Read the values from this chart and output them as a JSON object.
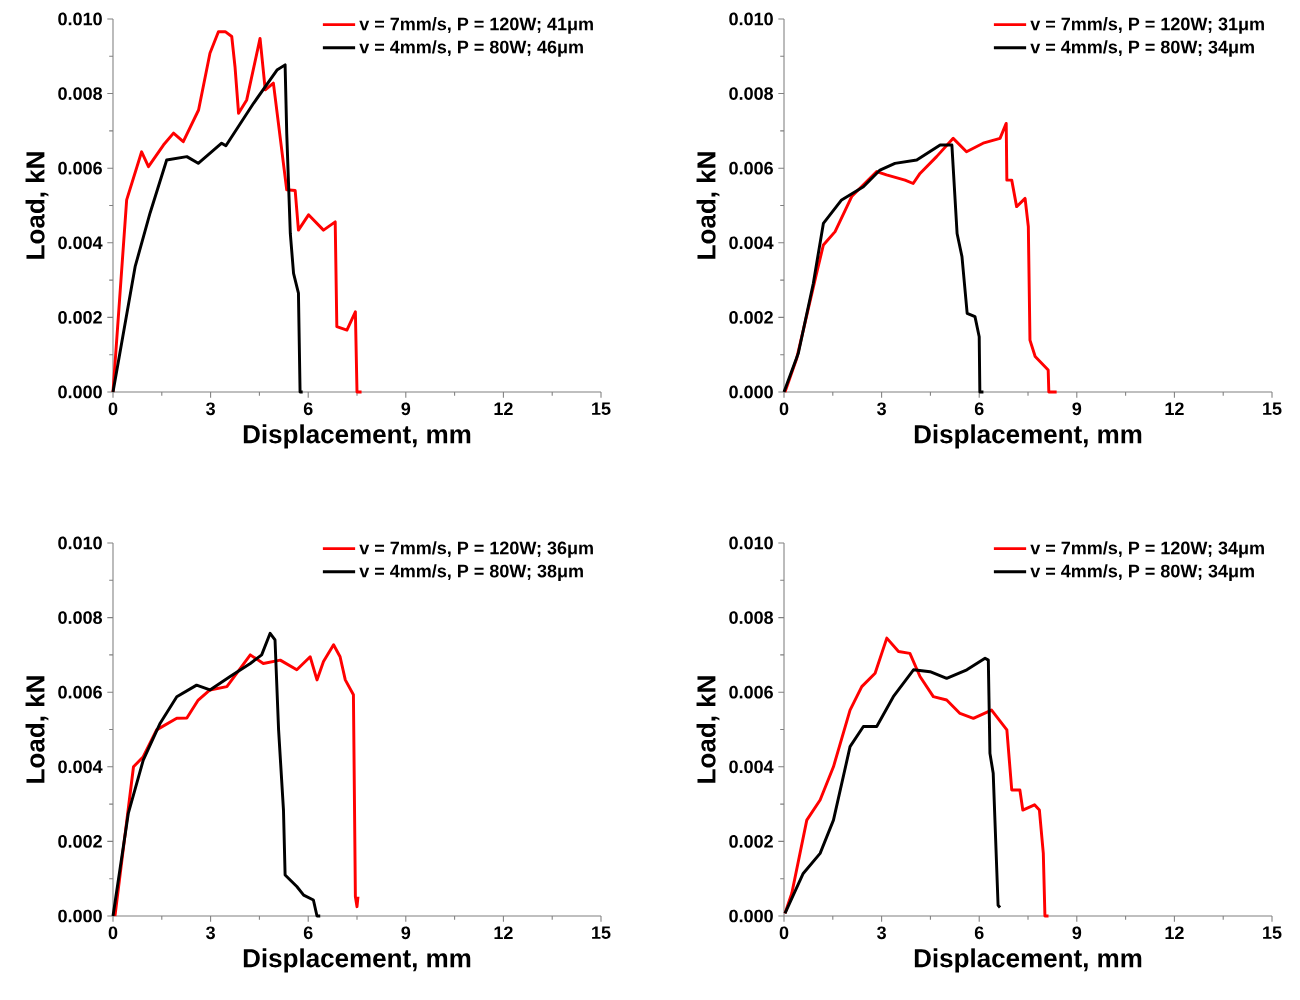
{
  "chart_data": [
    {
      "type": "line",
      "xlabel": "Displacement, mm",
      "ylabel": "Load, kN",
      "xlim": [
        0,
        15
      ],
      "ylim": [
        0,
        0.01
      ],
      "xticks": [
        0,
        3,
        6,
        9,
        12,
        15
      ],
      "yticks": [
        {
          "value": 0,
          "label": "0.000"
        },
        {
          "value": 0.002,
          "label": "0.002"
        },
        {
          "value": 0.004,
          "label": "0.004"
        },
        {
          "value": 0.006,
          "label": "0.006"
        },
        {
          "value": 0.008,
          "label": "0.008"
        },
        {
          "value": 0.01,
          "label": "0.010"
        }
      ],
      "legend": "top right",
      "series": [
        {
          "name": "v = 7mm/s, P = 120W; 41μm",
          "color": "#ff0000",
          "x": [
            0.0,
            0.42,
            0.88,
            1.09,
            1.55,
            1.86,
            2.16,
            2.63,
            2.98,
            3.24,
            3.45,
            3.65,
            3.75,
            3.86,
            4.11,
            4.52,
            4.68,
            4.93,
            5.34,
            5.6,
            5.7,
            6.01,
            6.47,
            6.83,
            6.88,
            7.19,
            7.45,
            7.5,
            7.64
          ],
          "values": [
            0.0,
            0.00515,
            0.00644,
            0.00604,
            0.00662,
            0.00694,
            0.00671,
            0.00756,
            0.00908,
            0.00966,
            0.00966,
            0.00953,
            0.00872,
            0.00747,
            0.00783,
            0.00948,
            0.0081,
            0.00828,
            0.00542,
            0.0054,
            0.00434,
            0.00475,
            0.00434,
            0.00456,
            0.00175,
            0.00166,
            0.00215,
            0.0,
            0.0
          ]
        },
        {
          "name": "v = 4mm/s, P = 80W; 46μm",
          "color": "#000000",
          "x": [
            0.0,
            0.68,
            1.14,
            1.65,
            2.27,
            2.62,
            3.34,
            3.47,
            4.32,
            5.04,
            5.29,
            5.34,
            5.45,
            5.55,
            5.7,
            5.75,
            5.83
          ],
          "values": [
            0.0,
            0.00336,
            0.0048,
            0.00622,
            0.00631,
            0.00613,
            0.00667,
            0.0066,
            0.00774,
            0.00863,
            0.00877,
            0.00694,
            0.00425,
            0.00318,
            0.00265,
            0.0,
            0.0
          ]
        }
      ]
    },
    {
      "type": "line",
      "xlabel": "Displacement, mm",
      "ylabel": "Load, kN",
      "xlim": [
        0,
        15
      ],
      "ylim": [
        0,
        0.01
      ],
      "xticks": [
        0,
        3,
        6,
        9,
        12,
        15
      ],
      "yticks": [
        {
          "value": 0,
          "label": "0.000"
        },
        {
          "value": 0.002,
          "label": "0.002"
        },
        {
          "value": 0.004,
          "label": "0.004"
        },
        {
          "value": 0.006,
          "label": "0.006"
        },
        {
          "value": 0.008,
          "label": "0.008"
        },
        {
          "value": 0.01,
          "label": "0.010"
        }
      ],
      "legend": "top right",
      "series": [
        {
          "name": "v = 7mm/s, P = 120W; 31μm",
          "color": "#ff0000",
          "x": [
            0.03,
            0.39,
            1.0,
            1.21,
            1.57,
            2.08,
            2.85,
            3.15,
            3.72,
            3.97,
            4.18,
            4.69,
            5.2,
            5.61,
            6.12,
            6.64,
            6.83,
            6.85,
            7.0,
            7.15,
            7.41,
            7.51,
            7.56,
            7.72,
            8.12,
            8.14,
            8.38
          ],
          "values": [
            0.0,
            0.0009,
            0.00318,
            0.00394,
            0.0043,
            0.00524,
            0.00591,
            0.00582,
            0.00568,
            0.00559,
            0.00586,
            0.00631,
            0.0068,
            0.00644,
            0.00667,
            0.0068,
            0.0072,
            0.00568,
            0.00568,
            0.00497,
            0.00519,
            0.00443,
            0.00139,
            0.00095,
            0.00059,
            0.0,
            0.0
          ]
        },
        {
          "name": "v = 4mm/s, P = 80W; 34μm",
          "color": "#000000",
          "x": [
            0.0,
            0.44,
            0.9,
            1.21,
            1.77,
            2.44,
            2.95,
            3.41,
            4.08,
            4.8,
            5.16,
            5.32,
            5.47,
            5.63,
            5.87,
            6.0,
            6.02,
            6.13
          ],
          "values": [
            0.0,
            0.00104,
            0.00291,
            0.00452,
            0.00515,
            0.0055,
            0.00595,
            0.00613,
            0.00622,
            0.00662,
            0.00662,
            0.00425,
            0.00363,
            0.00211,
            0.00202,
            0.00148,
            0.0,
            0.0
          ]
        }
      ]
    },
    {
      "type": "line",
      "xlabel": "Displacement, mm",
      "ylabel": "Load, kN",
      "xlim": [
        0,
        15
      ],
      "ylim": [
        0,
        0.01
      ],
      "xticks": [
        0,
        3,
        6,
        9,
        12,
        15
      ],
      "yticks": [
        {
          "value": 0,
          "label": "0.000"
        },
        {
          "value": 0.002,
          "label": "0.002"
        },
        {
          "value": 0.004,
          "label": "0.004"
        },
        {
          "value": 0.006,
          "label": "0.006"
        },
        {
          "value": 0.008,
          "label": "0.008"
        },
        {
          "value": 0.01,
          "label": "0.010"
        }
      ],
      "legend": "top right",
      "series": [
        {
          "name": "v = 7mm/s, P = 120W; 36μm",
          "color": "#ff0000",
          "x": [
            0.06,
            0.63,
            0.93,
            1.34,
            1.96,
            2.27,
            2.62,
            2.98,
            3.5,
            4.22,
            4.62,
            5.14,
            5.65,
            6.06,
            6.27,
            6.47,
            6.78,
            6.98,
            7.14,
            7.39,
            7.45,
            7.5,
            7.53
          ],
          "values": [
            0.0,
            0.004,
            0.00427,
            0.00499,
            0.0053,
            0.00531,
            0.00579,
            0.00606,
            0.00615,
            0.007,
            0.00677,
            0.00686,
            0.0066,
            0.00695,
            0.00633,
            0.00682,
            0.00727,
            0.00695,
            0.00633,
            0.00593,
            0.00052,
            0.00025,
            0.00052
          ]
        },
        {
          "name": "v = 4mm/s, P = 80W; 38μm",
          "color": "#000000",
          "x": [
            0.0,
            0.47,
            0.93,
            1.45,
            1.96,
            2.57,
            2.98,
            3.6,
            4.22,
            4.57,
            4.83,
            4.98,
            5.09,
            5.24,
            5.29,
            5.65,
            5.86,
            6.16,
            6.27,
            6.37
          ],
          "values": [
            0.0,
            0.00275,
            0.00418,
            0.00517,
            0.00588,
            0.00619,
            0.00606,
            0.00642,
            0.00677,
            0.007,
            0.00758,
            0.0074,
            0.00499,
            0.00284,
            0.0011,
            0.00079,
            0.00056,
            0.00043,
            0.0,
            0.0
          ]
        }
      ]
    },
    {
      "type": "line",
      "xlabel": "Displacement, mm",
      "ylabel": "Load, kN",
      "xlim": [
        0,
        15
      ],
      "ylim": [
        0,
        0.01
      ],
      "xticks": [
        0,
        3,
        6,
        9,
        12,
        15
      ],
      "yticks": [
        {
          "value": 0,
          "label": "0.000"
        },
        {
          "value": 0.002,
          "label": "0.002"
        },
        {
          "value": 0.004,
          "label": "0.004"
        },
        {
          "value": 0.006,
          "label": "0.006"
        },
        {
          "value": 0.008,
          "label": "0.008"
        },
        {
          "value": 0.01,
          "label": "0.010"
        }
      ],
      "legend": "top right",
      "series": [
        {
          "name": "v = 7mm/s, P = 120W; 34μm",
          "color": "#ff0000",
          "x": [
            0.03,
            0.24,
            0.7,
            1.11,
            1.52,
            2.03,
            2.39,
            2.8,
            3.16,
            3.52,
            3.87,
            4.18,
            4.59,
            5.0,
            5.41,
            5.82,
            6.38,
            6.85,
            7.0,
            7.25,
            7.34,
            7.7,
            7.85,
            7.97,
            8.02,
            8.13
          ],
          "values": [
            7e-05,
            0.00061,
            0.00257,
            0.00311,
            0.004,
            0.00552,
            0.00615,
            0.00651,
            0.00745,
            0.00709,
            0.00704,
            0.00642,
            0.00588,
            0.00579,
            0.00543,
            0.0053,
            0.00552,
            0.00499,
            0.00338,
            0.00338,
            0.00284,
            0.00298,
            0.00284,
            0.00168,
            0.0,
            0.0
          ]
        },
        {
          "name": "v = 4mm/s, P = 80W; 34μm",
          "color": "#000000",
          "x": [
            0.03,
            0.59,
            1.11,
            1.52,
            2.03,
            2.44,
            2.85,
            3.36,
            3.98,
            4.49,
            5.0,
            5.62,
            6.18,
            6.28,
            6.33,
            6.43,
            6.58,
            6.64
          ],
          "values": [
            7e-05,
            0.00114,
            0.00168,
            0.00257,
            0.00454,
            0.00508,
            0.00508,
            0.00588,
            0.0066,
            0.00655,
            0.00637,
            0.0066,
            0.00691,
            0.00686,
            0.00436,
            0.00383,
            0.00029,
            0.00023
          ]
        }
      ]
    }
  ]
}
